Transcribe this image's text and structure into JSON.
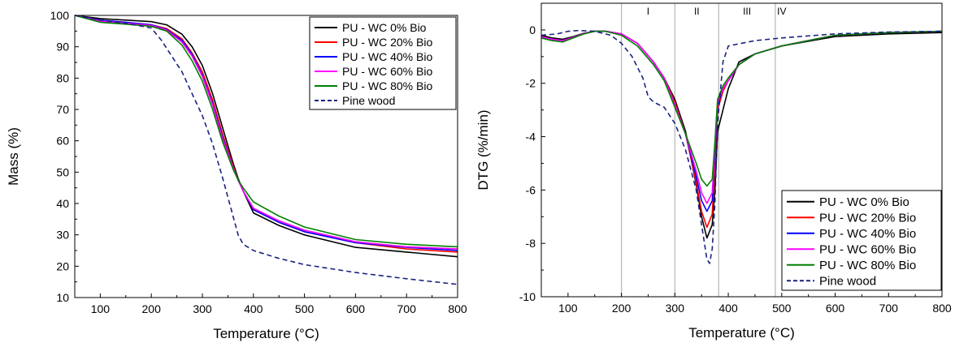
{
  "chart_data": [
    {
      "type": "line",
      "xlabel": "Temperature (°C)",
      "ylabel": "Mass (%)",
      "xlim": [
        50,
        800
      ],
      "ylim": [
        10,
        100
      ],
      "xticks": [
        100,
        200,
        300,
        400,
        500,
        600,
        700,
        800
      ],
      "yticks": [
        10,
        20,
        30,
        40,
        50,
        60,
        70,
        80,
        90,
        100
      ],
      "grid": false,
      "legend_position": "top-right",
      "series": [
        {
          "name": "PU - WC 0% Bio",
          "color": "#000000",
          "dash": "solid",
          "x": [
            50,
            100,
            150,
            200,
            230,
            260,
            280,
            300,
            320,
            340,
            360,
            370,
            380,
            400,
            450,
            500,
            600,
            700,
            800
          ],
          "y": [
            100,
            99,
            98.5,
            98,
            97,
            94,
            90,
            84,
            75,
            64,
            53,
            48,
            44,
            37,
            33,
            30,
            26,
            24.5,
            23
          ]
        },
        {
          "name": "PU - WC 20% Bio",
          "color": "#ff0000",
          "dash": "solid",
          "x": [
            50,
            100,
            150,
            200,
            230,
            260,
            280,
            300,
            320,
            340,
            360,
            370,
            380,
            400,
            450,
            500,
            600,
            700,
            800
          ],
          "y": [
            100,
            98.5,
            97.8,
            97,
            95.8,
            92.5,
            88,
            82,
            73,
            62,
            52,
            47.5,
            44,
            38,
            34,
            31,
            27.5,
            25.5,
            24.5
          ]
        },
        {
          "name": "PU - WC 40% Bio",
          "color": "#0000ff",
          "dash": "solid",
          "x": [
            50,
            100,
            150,
            200,
            230,
            260,
            280,
            300,
            320,
            340,
            360,
            370,
            380,
            400,
            450,
            500,
            600,
            700,
            800
          ],
          "y": [
            100,
            98.5,
            97.8,
            97,
            95.5,
            92,
            87.5,
            81,
            72,
            61,
            51.5,
            47.5,
            44,
            38,
            34,
            31,
            27.5,
            26,
            25
          ]
        },
        {
          "name": "PU - WC 60% Bio",
          "color": "#ff00ff",
          "dash": "solid",
          "x": [
            50,
            100,
            150,
            200,
            230,
            260,
            280,
            300,
            320,
            340,
            360,
            370,
            380,
            400,
            450,
            500,
            600,
            700,
            800
          ],
          "y": [
            100,
            98.2,
            97.5,
            96.8,
            95.3,
            91.5,
            87,
            80.5,
            71.5,
            60.5,
            51.5,
            47.5,
            44,
            38.5,
            34.5,
            31.5,
            27.8,
            26.2,
            25.5
          ]
        },
        {
          "name": "PU - WC 80% Bio",
          "color": "#008000",
          "dash": "solid",
          "x": [
            50,
            100,
            150,
            200,
            230,
            260,
            280,
            300,
            320,
            340,
            360,
            370,
            380,
            400,
            450,
            500,
            600,
            700,
            800
          ],
          "y": [
            100,
            97.8,
            97.2,
            96.5,
            95,
            90.5,
            85.5,
            79,
            70,
            59.5,
            51,
            47.5,
            45,
            40.5,
            36,
            32.5,
            28.5,
            27,
            26.2
          ]
        },
        {
          "name": "Pine wood",
          "color": "#1a237e",
          "dash": "dashed",
          "x": [
            50,
            100,
            150,
            200,
            220,
            240,
            260,
            280,
            300,
            320,
            340,
            360,
            370,
            380,
            400,
            450,
            500,
            600,
            700,
            800
          ],
          "y": [
            100,
            98.5,
            97.5,
            96,
            92,
            87,
            82,
            75,
            68,
            59,
            48,
            36,
            30,
            27,
            25,
            22.5,
            20.5,
            18,
            16,
            14.2
          ]
        }
      ]
    },
    {
      "type": "line",
      "xlabel": "Temperature (°C)",
      "ylabel": "DTG (%/min)",
      "xlim": [
        50,
        800
      ],
      "ylim": [
        -10,
        1
      ],
      "xticks": [
        100,
        200,
        300,
        400,
        500,
        600,
        700,
        800
      ],
      "yticks": [
        -10,
        -8,
        -6,
        -4,
        -2,
        0
      ],
      "grid": false,
      "legend_position": "bottom-right",
      "region_lines": [
        200,
        300,
        382,
        488
      ],
      "region_labels": [
        {
          "text": "I",
          "x": 250
        },
        {
          "text": "II",
          "x": 341
        },
        {
          "text": "III",
          "x": 435
        },
        {
          "text": "IV",
          "x": 500
        }
      ],
      "series": [
        {
          "name": "PU - WC 0% Bio",
          "color": "#000000",
          "dash": "solid",
          "x": [
            50,
            70,
            90,
            110,
            130,
            150,
            170,
            200,
            230,
            260,
            280,
            300,
            320,
            340,
            350,
            360,
            370,
            375,
            380,
            390,
            400,
            420,
            450,
            500,
            600,
            700,
            800
          ],
          "y": [
            -0.2,
            -0.3,
            -0.35,
            -0.25,
            -0.12,
            -0.05,
            -0.05,
            -0.15,
            -0.5,
            -1.2,
            -1.8,
            -2.6,
            -3.8,
            -5.8,
            -7.0,
            -7.8,
            -7.3,
            -6.0,
            -3.8,
            -3.0,
            -2.2,
            -1.2,
            -0.9,
            -0.6,
            -0.25,
            -0.15,
            -0.1
          ]
        },
        {
          "name": "PU - WC 20% Bio",
          "color": "#ff0000",
          "dash": "solid",
          "x": [
            50,
            70,
            90,
            110,
            130,
            150,
            170,
            200,
            230,
            260,
            280,
            300,
            320,
            340,
            350,
            360,
            370,
            375,
            380,
            390,
            400,
            420,
            450,
            500,
            600,
            700,
            800
          ],
          "y": [
            -0.25,
            -0.35,
            -0.4,
            -0.28,
            -0.13,
            -0.05,
            -0.05,
            -0.15,
            -0.5,
            -1.2,
            -1.8,
            -2.7,
            -3.9,
            -5.7,
            -6.8,
            -7.4,
            -6.9,
            -5.0,
            -3.0,
            -2.3,
            -1.9,
            -1.3,
            -0.9,
            -0.6,
            -0.2,
            -0.1,
            -0.05
          ]
        },
        {
          "name": "PU - WC 40% Bio",
          "color": "#0000ff",
          "dash": "solid",
          "x": [
            50,
            70,
            90,
            110,
            130,
            150,
            170,
            200,
            230,
            260,
            280,
            300,
            320,
            340,
            350,
            360,
            370,
            375,
            380,
            390,
            400,
            420,
            450,
            500,
            600,
            700,
            800
          ],
          "y": [
            -0.25,
            -0.35,
            -0.4,
            -0.28,
            -0.13,
            -0.05,
            -0.05,
            -0.15,
            -0.5,
            -1.2,
            -1.8,
            -2.8,
            -3.9,
            -5.5,
            -6.4,
            -6.8,
            -6.4,
            -4.6,
            -2.8,
            -2.2,
            -1.9,
            -1.3,
            -0.9,
            -0.6,
            -0.2,
            -0.1,
            -0.05
          ]
        },
        {
          "name": "PU - WC 60% Bio",
          "color": "#ff00ff",
          "dash": "solid",
          "x": [
            50,
            70,
            90,
            110,
            130,
            150,
            170,
            200,
            230,
            260,
            280,
            300,
            320,
            340,
            350,
            360,
            370,
            375,
            380,
            390,
            400,
            420,
            450,
            500,
            600,
            700,
            800
          ],
          "y": [
            -0.25,
            -0.35,
            -0.4,
            -0.28,
            -0.13,
            -0.05,
            -0.05,
            -0.15,
            -0.5,
            -1.2,
            -1.8,
            -2.8,
            -3.9,
            -5.3,
            -6.1,
            -6.5,
            -6.1,
            -4.4,
            -2.7,
            -2.2,
            -1.9,
            -1.3,
            -0.9,
            -0.6,
            -0.2,
            -0.1,
            -0.05
          ]
        },
        {
          "name": "PU - WC 80% Bio",
          "color": "#008000",
          "dash": "solid",
          "x": [
            50,
            70,
            90,
            110,
            130,
            150,
            170,
            200,
            230,
            260,
            280,
            300,
            320,
            340,
            350,
            360,
            370,
            375,
            380,
            390,
            400,
            420,
            450,
            500,
            600,
            700,
            800
          ],
          "y": [
            -0.3,
            -0.4,
            -0.45,
            -0.3,
            -0.15,
            -0.05,
            -0.05,
            -0.2,
            -0.6,
            -1.3,
            -1.9,
            -2.9,
            -3.9,
            -5.0,
            -5.6,
            -5.85,
            -5.6,
            -4.2,
            -2.6,
            -2.1,
            -1.8,
            -1.3,
            -0.9,
            -0.6,
            -0.2,
            -0.1,
            -0.05
          ]
        },
        {
          "name": "Pine wood",
          "color": "#1a237e",
          "dash": "dashed",
          "x": [
            50,
            80,
            100,
            120,
            150,
            180,
            200,
            220,
            240,
            250,
            260,
            280,
            300,
            320,
            340,
            350,
            360,
            365,
            370,
            375,
            380,
            390,
            400,
            450,
            500,
            600,
            700,
            800
          ],
          "y": [
            -0.2,
            -0.15,
            -0.05,
            -0.02,
            -0.05,
            -0.2,
            -0.5,
            -1.0,
            -1.8,
            -2.5,
            -2.7,
            -2.9,
            -3.5,
            -4.5,
            -6.0,
            -7.3,
            -8.6,
            -8.75,
            -8.2,
            -6.5,
            -3.5,
            -1.2,
            -0.6,
            -0.4,
            -0.3,
            -0.15,
            -0.08,
            -0.05
          ]
        }
      ]
    }
  ]
}
